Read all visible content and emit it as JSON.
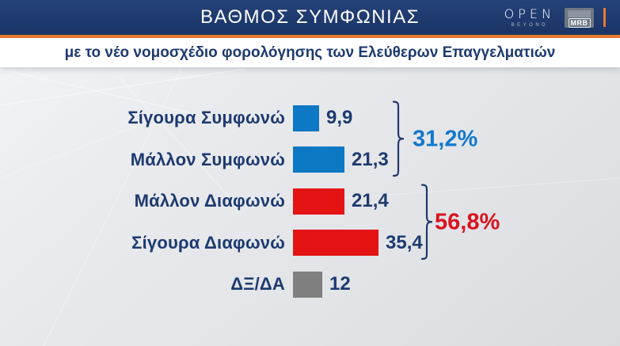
{
  "header": {
    "title": "ΒΑΘΜΟΣ ΣΥΜΦΩΝΙΑΣ",
    "open_logo": {
      "text": "OPEN",
      "sub": "BEYOND"
    },
    "mrb_logo": "MRB"
  },
  "subtitle": "με το νέο νομοσχέδιο φορολόγησης των Ελεύθερων Επαγγελματιών",
  "colors": {
    "header_navy": "#1e3a6e",
    "accent_orange": "#e87a2e",
    "label_navy": "#1d3a70",
    "agree_blue": "#0d78c4",
    "disagree_red": "#e41414",
    "neutral_gray": "#7f7f7f",
    "group_blue": "#1278cd",
    "group_red": "#d8131f"
  },
  "chart_data": {
    "type": "bar",
    "orientation": "horizontal",
    "title": "ΒΑΘΜΟΣ ΣΥΜΦΩΝΙΑΣ",
    "subtitle": "με το νέο νομοσχέδιο φορολόγησης των Ελεύθερων Επαγγελματιών",
    "categories": [
      "Σίγουρα Συμφωνώ",
      "Μάλλον Συμφωνώ",
      "Μάλλον Διαφωνώ",
      "Σίγουρα Διαφωνώ",
      "ΔΞ/ΔΑ"
    ],
    "values": [
      9.9,
      21.3,
      21.4,
      35.4,
      12
    ],
    "value_labels": [
      "9,9",
      "21,3",
      "21,4",
      "35,4",
      "12"
    ],
    "bar_colors": [
      "#0d78c4",
      "#0d78c4",
      "#e41414",
      "#e41414",
      "#7f7f7f"
    ],
    "xlim": [
      0,
      40
    ],
    "grid": false,
    "legend": false,
    "groups": [
      {
        "label": "31,2%",
        "rows": [
          0,
          1
        ],
        "color": "#1278cd"
      },
      {
        "label": "56,8%",
        "rows": [
          2,
          3
        ],
        "color": "#d8131f"
      }
    ]
  }
}
